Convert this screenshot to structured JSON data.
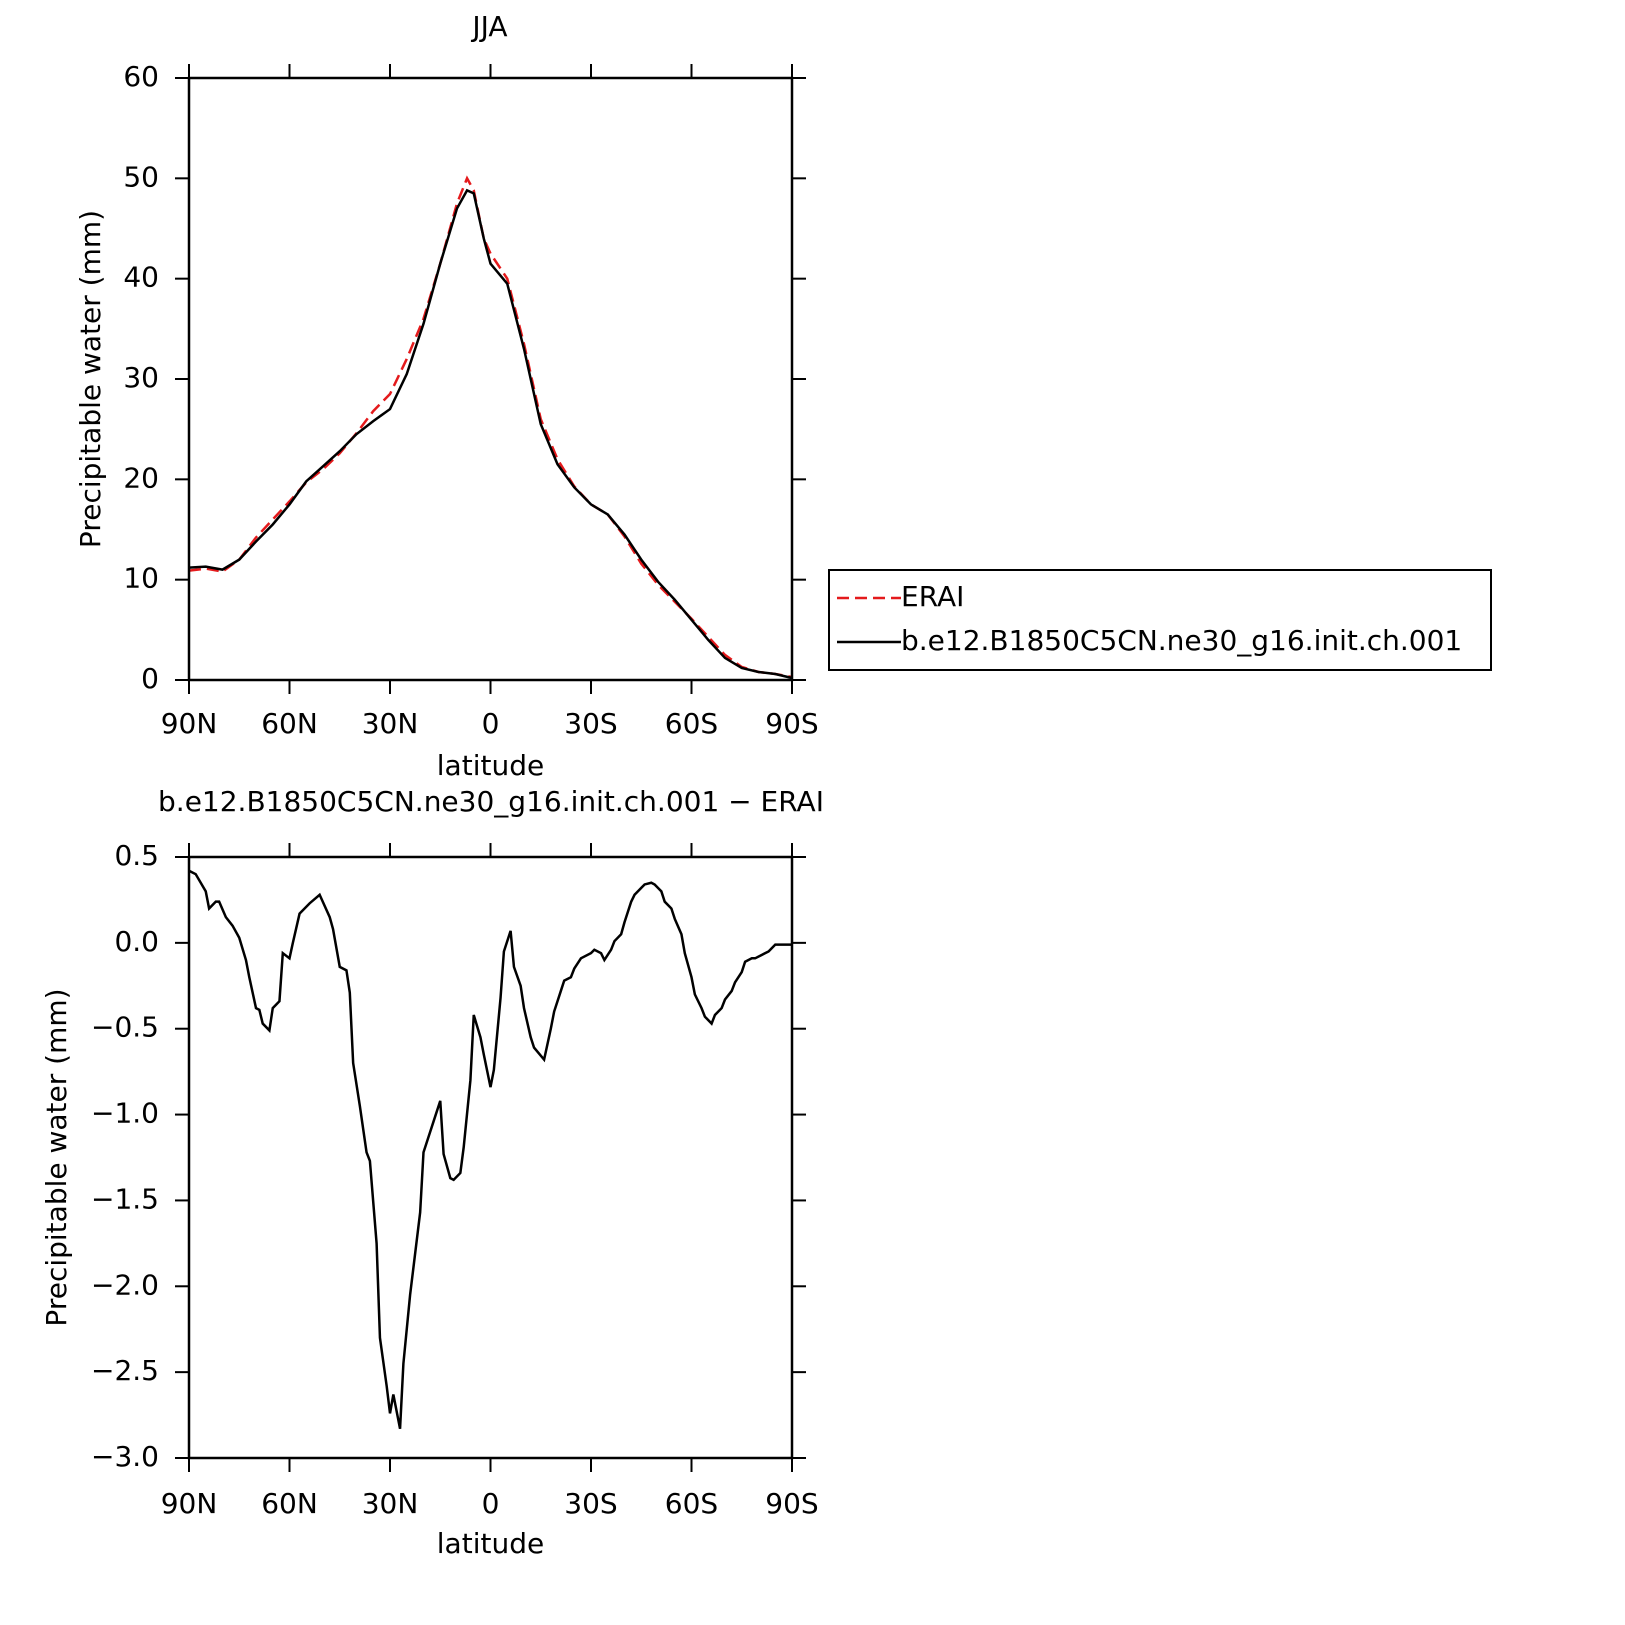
{
  "chart_data": [
    {
      "type": "line",
      "title": "JJA",
      "xlabel": "latitude",
      "ylabel": "Precipitable water (mm)",
      "x": [
        90,
        85,
        80,
        75,
        70,
        65,
        60,
        55,
        50,
        45,
        40,
        35,
        30,
        25,
        20,
        15,
        10,
        7,
        5,
        2,
        0,
        -5,
        -10,
        -15,
        -20,
        -25,
        -30,
        -35,
        -40,
        -45,
        -50,
        -55,
        -60,
        -65,
        -70,
        -75,
        -80,
        -85,
        -90
      ],
      "series": [
        {
          "name": "ERAI",
          "color": "#e41a1c",
          "dashed": true,
          "values": [
            10.9,
            11.1,
            10.8,
            12.0,
            14.2,
            16.0,
            17.8,
            19.7,
            21.0,
            22.6,
            24.6,
            26.8,
            28.5,
            32.0,
            36.0,
            41.5,
            47.5,
            50.0,
            48.8,
            44.0,
            42.5,
            40.0,
            33.5,
            26.0,
            22.0,
            19.3,
            17.5,
            16.5,
            14.3,
            11.6,
            9.5,
            7.8,
            6.1,
            4.3,
            2.5,
            1.3,
            0.8,
            0.6,
            0.3
          ]
        },
        {
          "name": "b.e12.B1850C5CN.ne30_g16.init.ch.001",
          "color": "#000000",
          "dashed": false,
          "values": [
            11.2,
            11.3,
            11.0,
            12.0,
            13.8,
            15.5,
            17.5,
            19.8,
            21.3,
            22.8,
            24.5,
            25.8,
            27.0,
            30.5,
            35.5,
            41.5,
            47.0,
            48.8,
            48.5,
            44.0,
            41.5,
            39.5,
            33.0,
            25.5,
            21.5,
            19.2,
            17.5,
            16.5,
            14.5,
            12.0,
            9.8,
            8.0,
            6.0,
            4.0,
            2.2,
            1.2,
            0.8,
            0.6,
            0.2
          ]
        }
      ],
      "xlim": [
        90,
        -90
      ],
      "xticks": [
        {
          "value": 90,
          "label": "90N"
        },
        {
          "value": 60,
          "label": "60N"
        },
        {
          "value": 30,
          "label": "30N"
        },
        0,
        {
          "value": -30,
          "label": "30S"
        },
        {
          "value": -60,
          "label": "60S"
        },
        {
          "value": -90,
          "label": "90S"
        }
      ],
      "ylim": [
        0,
        60
      ],
      "yticks": [
        0,
        10,
        20,
        30,
        40,
        50,
        60
      ],
      "legend": "right",
      "grid": false
    },
    {
      "type": "line",
      "title": "b.e12.B1850C5CN.ne30_g16.init.ch.001 − ERAI",
      "xlabel": "latitude",
      "ylabel": "Precipitable water (mm)",
      "x": [
        90,
        88,
        85,
        84,
        82,
        81,
        79,
        77,
        75,
        73,
        72,
        70,
        69,
        68,
        66,
        65,
        63,
        62,
        60,
        59,
        57,
        54,
        51,
        48,
        47,
        45,
        43,
        42,
        41,
        39,
        37,
        36,
        34,
        33,
        31,
        30,
        29,
        27,
        26,
        24,
        21,
        20,
        18,
        17,
        15,
        14,
        12,
        11,
        9,
        8,
        6,
        5,
        3,
        2,
        0,
        -1,
        -3,
        -4,
        -6,
        -7,
        -9,
        -10,
        -12,
        -13,
        -16,
        -18,
        -19,
        -21,
        -22,
        -24,
        -25,
        -27,
        -30,
        -31,
        -33,
        -34,
        -36,
        -37,
        -39,
        -40,
        -42,
        -43,
        -45,
        -46,
        -48,
        -49,
        -51,
        -52,
        -54,
        -55,
        -57,
        -58,
        -60,
        -61,
        -63,
        -64,
        -66,
        -67,
        -69,
        -70,
        -72,
        -73,
        -75,
        -76,
        -78,
        -79,
        -82,
        -83,
        -85,
        -86,
        -90
      ],
      "color": "#000000",
      "values": [
        0.42,
        0.4,
        0.3,
        0.2,
        0.24,
        0.24,
        0.15,
        0.1,
        0.03,
        -0.1,
        -0.2,
        -0.38,
        -0.39,
        -0.47,
        -0.51,
        -0.38,
        -0.34,
        -0.06,
        -0.09,
        0,
        0.17,
        0.23,
        0.28,
        0.15,
        0.08,
        -0.14,
        -0.16,
        -0.29,
        -0.7,
        -0.95,
        -1.22,
        -1.27,
        -1.75,
        -2.3,
        -2.58,
        -2.74,
        -2.63,
        -2.83,
        -2.45,
        -2.05,
        -1.57,
        -1.22,
        -1.1,
        -1.04,
        -0.92,
        -1.23,
        -1.37,
        -1.38,
        -1.34,
        -1.19,
        -0.8,
        -0.42,
        -0.55,
        -0.65,
        -0.84,
        -0.74,
        -0.32,
        -0.05,
        0.07,
        -0.14,
        -0.25,
        -0.38,
        -0.55,
        -0.61,
        -0.68,
        -0.5,
        -0.4,
        -0.28,
        -0.22,
        -0.2,
        -0.15,
        -0.09,
        -0.06,
        -0.04,
        -0.06,
        -0.1,
        -0.04,
        0.01,
        0.05,
        0.12,
        0.24,
        0.28,
        0.32,
        0.34,
        0.35,
        0.34,
        0.3,
        0.24,
        0.2,
        0.14,
        0.05,
        -0.06,
        -0.2,
        -0.3,
        -0.38,
        -0.43,
        -0.47,
        -0.42,
        -0.38,
        -0.33,
        -0.28,
        -0.23,
        -0.17,
        -0.11,
        -0.09,
        -0.09,
        -0.06,
        -0.05,
        -0.01,
        -0.01,
        -0.01
      ],
      "xlim": [
        90,
        -90
      ],
      "xticks": [
        {
          "value": 90,
          "label": "90N"
        },
        {
          "value": 60,
          "label": "60N"
        },
        {
          "value": 30,
          "label": "30N"
        },
        0,
        {
          "value": -30,
          "label": "30S"
        },
        {
          "value": -60,
          "label": "60S"
        },
        {
          "value": -90,
          "label": "90S"
        }
      ],
      "ylim": [
        -3.0,
        0.5
      ],
      "yticks": [
        {
          "value": -3.0,
          "label": "−3.0"
        },
        {
          "value": -2.5,
          "label": "−2.5"
        },
        {
          "value": -2.0,
          "label": "−2.0"
        },
        {
          "value": -1.5,
          "label": "−1.5"
        },
        {
          "value": -1.0,
          "label": "−1.0"
        },
        {
          "value": -0.5,
          "label": "−0.5"
        },
        {
          "value": 0,
          "label": "0.0"
        },
        0.5
      ],
      "grid": false
    }
  ]
}
